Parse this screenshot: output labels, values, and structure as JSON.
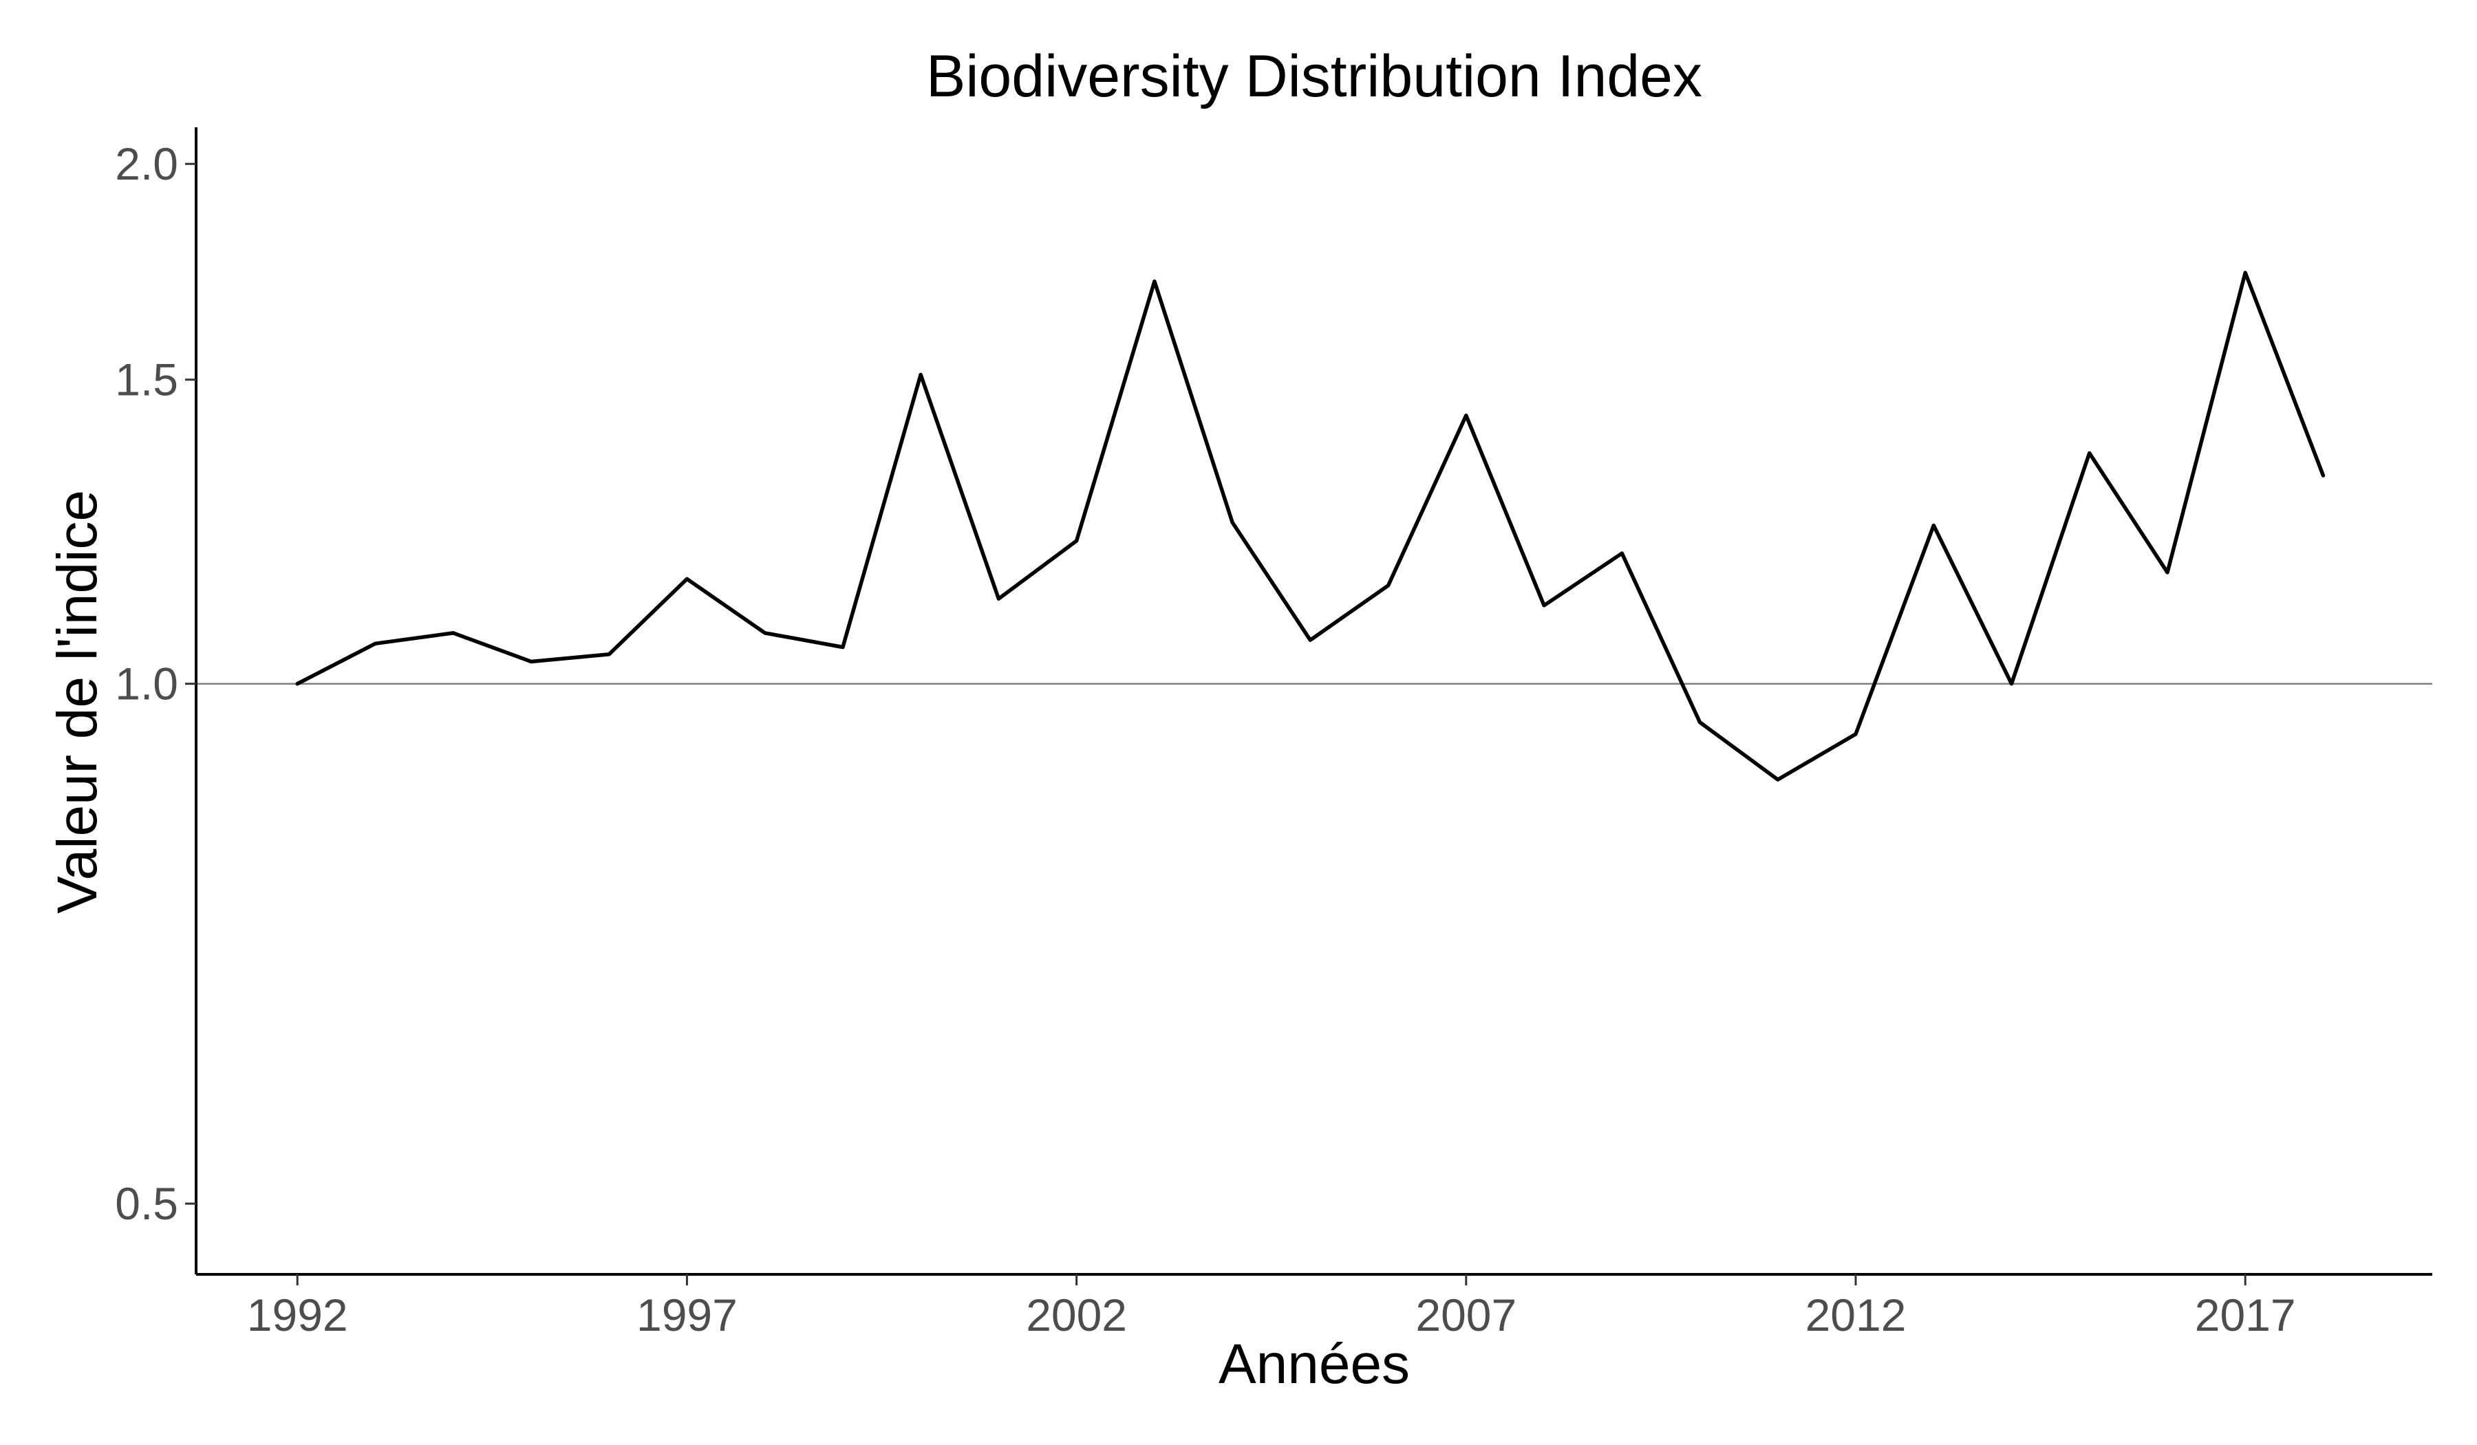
{
  "chart_data": {
    "type": "line",
    "title": "Biodiversity Distribution Index",
    "xlabel": "Années",
    "ylabel": "Valeur de l'indice",
    "y_scale": "log",
    "xlim": [
      1990.7,
      2019.4
    ],
    "ylim": [
      0.455,
      2.1
    ],
    "x_ticks": [
      1992,
      1997,
      2002,
      2007,
      2012,
      2017
    ],
    "y_ticks": [
      0.5,
      1.0,
      1.5,
      2.0
    ],
    "x_tick_labels": [
      "1992",
      "1997",
      "2002",
      "2007",
      "2012",
      "2017"
    ],
    "y_tick_labels": [
      "0.5",
      "1.0",
      "1.5",
      "2.0"
    ],
    "reference_line": 1.0,
    "grid": false,
    "line_color": "#000000",
    "reference_line_color": "#808080",
    "series": [
      {
        "x": [
          1992,
          1993,
          1994,
          1995,
          1996,
          1997,
          1998,
          1999,
          2000,
          2001,
          2002,
          2003,
          2004,
          2005,
          2006,
          2007,
          2008,
          2009,
          2010,
          2011,
          2012,
          2013,
          2014,
          2015,
          2016,
          2017,
          2018
        ],
        "values": [
          1.0,
          1.055,
          1.07,
          1.03,
          1.04,
          1.15,
          1.07,
          1.05,
          1.51,
          1.12,
          1.21,
          1.71,
          1.24,
          1.06,
          1.14,
          1.43,
          1.11,
          1.19,
          0.95,
          0.88,
          0.935,
          1.235,
          1.0,
          1.36,
          1.16,
          1.73,
          1.32
        ]
      }
    ]
  }
}
